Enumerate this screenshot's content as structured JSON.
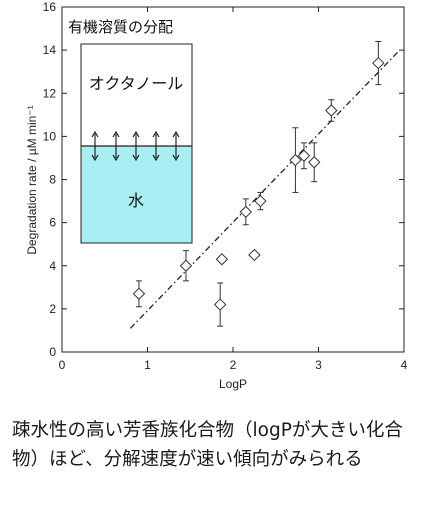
{
  "chart_data": {
    "type": "scatter",
    "xlabel": "LogP",
    "ylabel": "Degradation rate / µM min⁻¹",
    "xlim": [
      0,
      4
    ],
    "ylim": [
      0,
      16
    ],
    "xticks": [
      0,
      1,
      2,
      3,
      4
    ],
    "yticks": [
      0,
      2,
      4,
      6,
      8,
      10,
      12,
      14,
      16
    ],
    "marker": "diamond",
    "grid": false,
    "points": [
      {
        "x": 0.9,
        "y": 2.7,
        "err": 0.6
      },
      {
        "x": 1.45,
        "y": 4.0,
        "err": 0.7
      },
      {
        "x": 1.85,
        "y": 2.2,
        "err": 1.0
      },
      {
        "x": 1.87,
        "y": 4.3,
        "err": 0
      },
      {
        "x": 2.15,
        "y": 6.5,
        "err": 0.6
      },
      {
        "x": 2.25,
        "y": 4.5,
        "err": 0
      },
      {
        "x": 2.32,
        "y": 7.0,
        "err": 0.4
      },
      {
        "x": 2.73,
        "y": 8.9,
        "err": 1.5
      },
      {
        "x": 2.83,
        "y": 9.1,
        "err": 0.6
      },
      {
        "x": 2.95,
        "y": 8.8,
        "err": 0.9
      },
      {
        "x": 3.15,
        "y": 11.2,
        "err": 0.5
      },
      {
        "x": 3.7,
        "y": 13.4,
        "err": 1.0
      }
    ],
    "fit_line": {
      "x": [
        0.8,
        3.95
      ],
      "y": [
        1.1,
        14.0
      ],
      "style": "dash-dot"
    },
    "inset": {
      "title": "有機溶質の分配",
      "top_label": "オクタノール",
      "bottom_label": "水",
      "water_color": "#a8eef2"
    }
  },
  "caption": "疎水性の高い芳香族化合物（logPが大きい化合物）ほど、分解速度が速い傾向がみられる"
}
